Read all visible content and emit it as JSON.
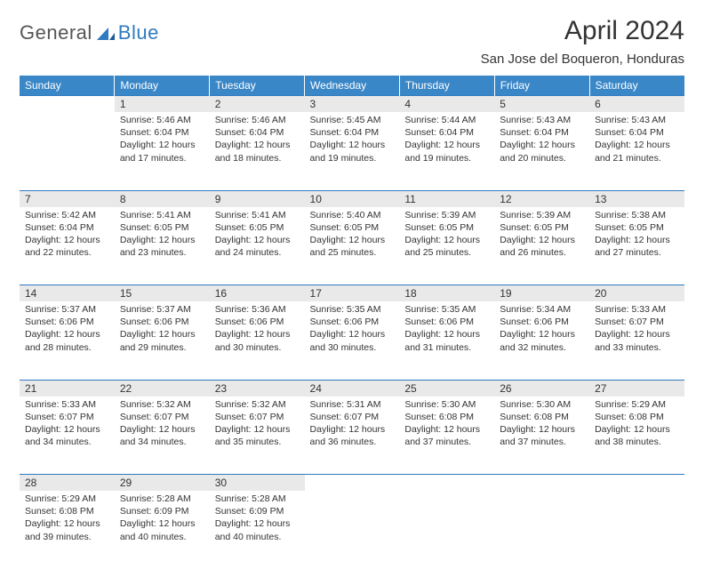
{
  "brand": {
    "word1": "General",
    "word2": "Blue"
  },
  "title": "April 2024",
  "location": "San Jose del Boqueron, Honduras",
  "colors": {
    "header_bg": "#3a87c8",
    "header_text": "#ffffff",
    "rule": "#2f7ac0",
    "daynum_bg": "#e9e9e9",
    "text": "#333333",
    "brand_blue": "#2f7ac0",
    "brand_grey": "#555555"
  },
  "weekdays": [
    "Sunday",
    "Monday",
    "Tuesday",
    "Wednesday",
    "Thursday",
    "Friday",
    "Saturday"
  ],
  "start_offset": 1,
  "days": [
    {
      "n": 1,
      "sunrise": "5:46 AM",
      "sunset": "6:04 PM",
      "dl": "12 hours and 17 minutes."
    },
    {
      "n": 2,
      "sunrise": "5:46 AM",
      "sunset": "6:04 PM",
      "dl": "12 hours and 18 minutes."
    },
    {
      "n": 3,
      "sunrise": "5:45 AM",
      "sunset": "6:04 PM",
      "dl": "12 hours and 19 minutes."
    },
    {
      "n": 4,
      "sunrise": "5:44 AM",
      "sunset": "6:04 PM",
      "dl": "12 hours and 19 minutes."
    },
    {
      "n": 5,
      "sunrise": "5:43 AM",
      "sunset": "6:04 PM",
      "dl": "12 hours and 20 minutes."
    },
    {
      "n": 6,
      "sunrise": "5:43 AM",
      "sunset": "6:04 PM",
      "dl": "12 hours and 21 minutes."
    },
    {
      "n": 7,
      "sunrise": "5:42 AM",
      "sunset": "6:04 PM",
      "dl": "12 hours and 22 minutes."
    },
    {
      "n": 8,
      "sunrise": "5:41 AM",
      "sunset": "6:05 PM",
      "dl": "12 hours and 23 minutes."
    },
    {
      "n": 9,
      "sunrise": "5:41 AM",
      "sunset": "6:05 PM",
      "dl": "12 hours and 24 minutes."
    },
    {
      "n": 10,
      "sunrise": "5:40 AM",
      "sunset": "6:05 PM",
      "dl": "12 hours and 25 minutes."
    },
    {
      "n": 11,
      "sunrise": "5:39 AM",
      "sunset": "6:05 PM",
      "dl": "12 hours and 25 minutes."
    },
    {
      "n": 12,
      "sunrise": "5:39 AM",
      "sunset": "6:05 PM",
      "dl": "12 hours and 26 minutes."
    },
    {
      "n": 13,
      "sunrise": "5:38 AM",
      "sunset": "6:05 PM",
      "dl": "12 hours and 27 minutes."
    },
    {
      "n": 14,
      "sunrise": "5:37 AM",
      "sunset": "6:06 PM",
      "dl": "12 hours and 28 minutes."
    },
    {
      "n": 15,
      "sunrise": "5:37 AM",
      "sunset": "6:06 PM",
      "dl": "12 hours and 29 minutes."
    },
    {
      "n": 16,
      "sunrise": "5:36 AM",
      "sunset": "6:06 PM",
      "dl": "12 hours and 30 minutes."
    },
    {
      "n": 17,
      "sunrise": "5:35 AM",
      "sunset": "6:06 PM",
      "dl": "12 hours and 30 minutes."
    },
    {
      "n": 18,
      "sunrise": "5:35 AM",
      "sunset": "6:06 PM",
      "dl": "12 hours and 31 minutes."
    },
    {
      "n": 19,
      "sunrise": "5:34 AM",
      "sunset": "6:06 PM",
      "dl": "12 hours and 32 minutes."
    },
    {
      "n": 20,
      "sunrise": "5:33 AM",
      "sunset": "6:07 PM",
      "dl": "12 hours and 33 minutes."
    },
    {
      "n": 21,
      "sunrise": "5:33 AM",
      "sunset": "6:07 PM",
      "dl": "12 hours and 34 minutes."
    },
    {
      "n": 22,
      "sunrise": "5:32 AM",
      "sunset": "6:07 PM",
      "dl": "12 hours and 34 minutes."
    },
    {
      "n": 23,
      "sunrise": "5:32 AM",
      "sunset": "6:07 PM",
      "dl": "12 hours and 35 minutes."
    },
    {
      "n": 24,
      "sunrise": "5:31 AM",
      "sunset": "6:07 PM",
      "dl": "12 hours and 36 minutes."
    },
    {
      "n": 25,
      "sunrise": "5:30 AM",
      "sunset": "6:08 PM",
      "dl": "12 hours and 37 minutes."
    },
    {
      "n": 26,
      "sunrise": "5:30 AM",
      "sunset": "6:08 PM",
      "dl": "12 hours and 37 minutes."
    },
    {
      "n": 27,
      "sunrise": "5:29 AM",
      "sunset": "6:08 PM",
      "dl": "12 hours and 38 minutes."
    },
    {
      "n": 28,
      "sunrise": "5:29 AM",
      "sunset": "6:08 PM",
      "dl": "12 hours and 39 minutes."
    },
    {
      "n": 29,
      "sunrise": "5:28 AM",
      "sunset": "6:09 PM",
      "dl": "12 hours and 40 minutes."
    },
    {
      "n": 30,
      "sunrise": "5:28 AM",
      "sunset": "6:09 PM",
      "dl": "12 hours and 40 minutes."
    }
  ]
}
